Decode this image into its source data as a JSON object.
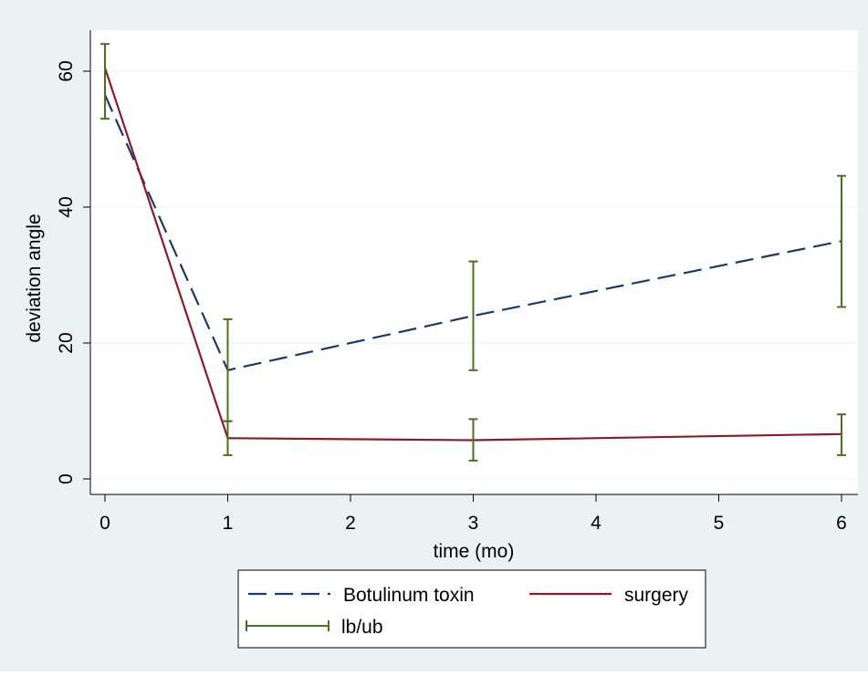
{
  "chart_data": {
    "type": "line",
    "title": "",
    "xlabel": "time (mo)",
    "ylabel": "deviation angle",
    "xlim": [
      0,
      6
    ],
    "ylim": [
      0,
      60
    ],
    "x_ticks": [
      "0",
      "1",
      "2",
      "3",
      "4",
      "5",
      "6"
    ],
    "y_ticks": [
      "0",
      "20",
      "40",
      "60"
    ],
    "grid": true,
    "legend_position": "bottom",
    "colors": {
      "botulinum": "#1a3a6b",
      "surgery": "#8b1a2b",
      "errorbar": "#4f6f1f",
      "outer_bg": "#eaf2f3",
      "plot_bg": "#ffffff",
      "grid": "#eaf2f3"
    },
    "series": [
      {
        "name": "Botulinum toxin",
        "style": "dashed",
        "x": [
          0,
          1,
          3,
          6
        ],
        "y": [
          56.5,
          16,
          24,
          35
        ]
      },
      {
        "name": "surgery",
        "style": "solid",
        "x": [
          0,
          1,
          3,
          6
        ],
        "y": [
          60.5,
          6,
          5.7,
          6.6
        ]
      }
    ],
    "error_bars": {
      "name": "lb/ub",
      "items": [
        {
          "x": 0,
          "lb": 53,
          "ub": 64
        },
        {
          "x": 1,
          "lb": 8.5,
          "ub": 23.5
        },
        {
          "x": 1,
          "lb": 3.5,
          "ub": 8.5
        },
        {
          "x": 3,
          "lb": 16,
          "ub": 32
        },
        {
          "x": 3,
          "lb": 2.7,
          "ub": 8.8
        },
        {
          "x": 6,
          "lb": 25.3,
          "ub": 44.6
        },
        {
          "x": 6,
          "lb": 3.5,
          "ub": 9.5
        }
      ]
    }
  }
}
